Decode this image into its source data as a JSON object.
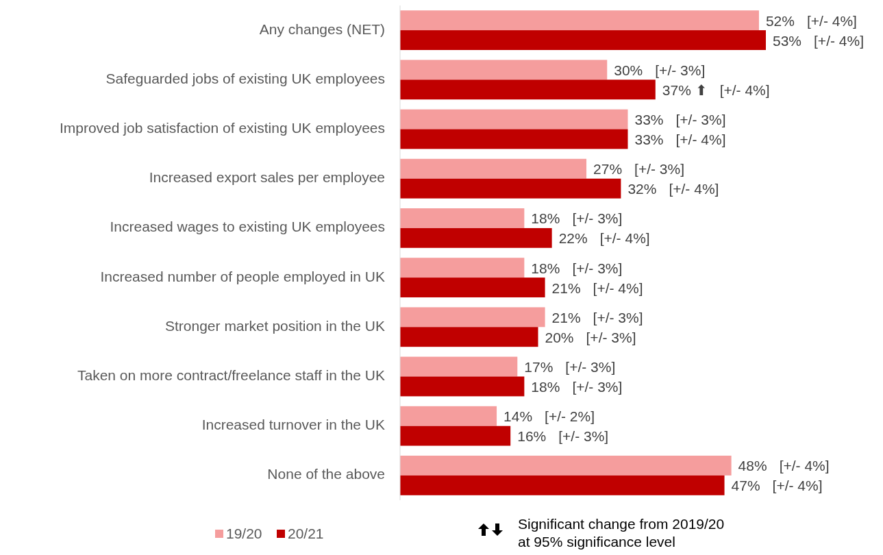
{
  "chart_data": {
    "type": "bar",
    "orientation": "horizontal",
    "categories": [
      "Any changes (NET)",
      "Safeguarded jobs of existing UK employees",
      "Improved job satisfaction of existing UK employees",
      "Increased export sales per employee",
      "Increased wages to existing UK employees",
      "Increased number of people employed in UK",
      "Stronger market position in the UK",
      "Taken on more contract/freelance staff in the UK",
      "Increased turnover in the UK",
      "None of the above"
    ],
    "series": [
      {
        "name": "19/20",
        "color": "#f59d9d",
        "values": [
          52,
          30,
          33,
          27,
          18,
          18,
          21,
          17,
          14,
          48
        ],
        "value_labels": [
          "52%  [+/- 4%]",
          "30%  [+/- 3%]",
          "33%  [+/- 3%]",
          "27%  [+/- 3%]",
          "18%  [+/- 3%]",
          "18%  [+/- 3%]",
          "21%  [+/- 3%]",
          "17%  [+/- 3%]",
          "14%  [+/- 2%]",
          "48%  [+/- 4%]"
        ]
      },
      {
        "name": "20/21",
        "color": "#c00000",
        "values": [
          53,
          37,
          33,
          32,
          22,
          21,
          20,
          18,
          16,
          47
        ],
        "value_labels": [
          "53%  [+/- 4%]",
          "37% ⬆ [+/- 4%]",
          "33%  [+/- 4%]",
          "32%  [+/- 4%]",
          "22%  [+/- 4%]",
          "21%  [+/- 4%]",
          "20%  [+/- 3%]",
          "18%  [+/- 3%]",
          "16%  [+/- 3%]",
          "47%  [+/- 4%]"
        ]
      }
    ],
    "legend": "bottom left",
    "annotations": [
      "Significant change from 2019/20 at 95% significance level"
    ]
  }
}
